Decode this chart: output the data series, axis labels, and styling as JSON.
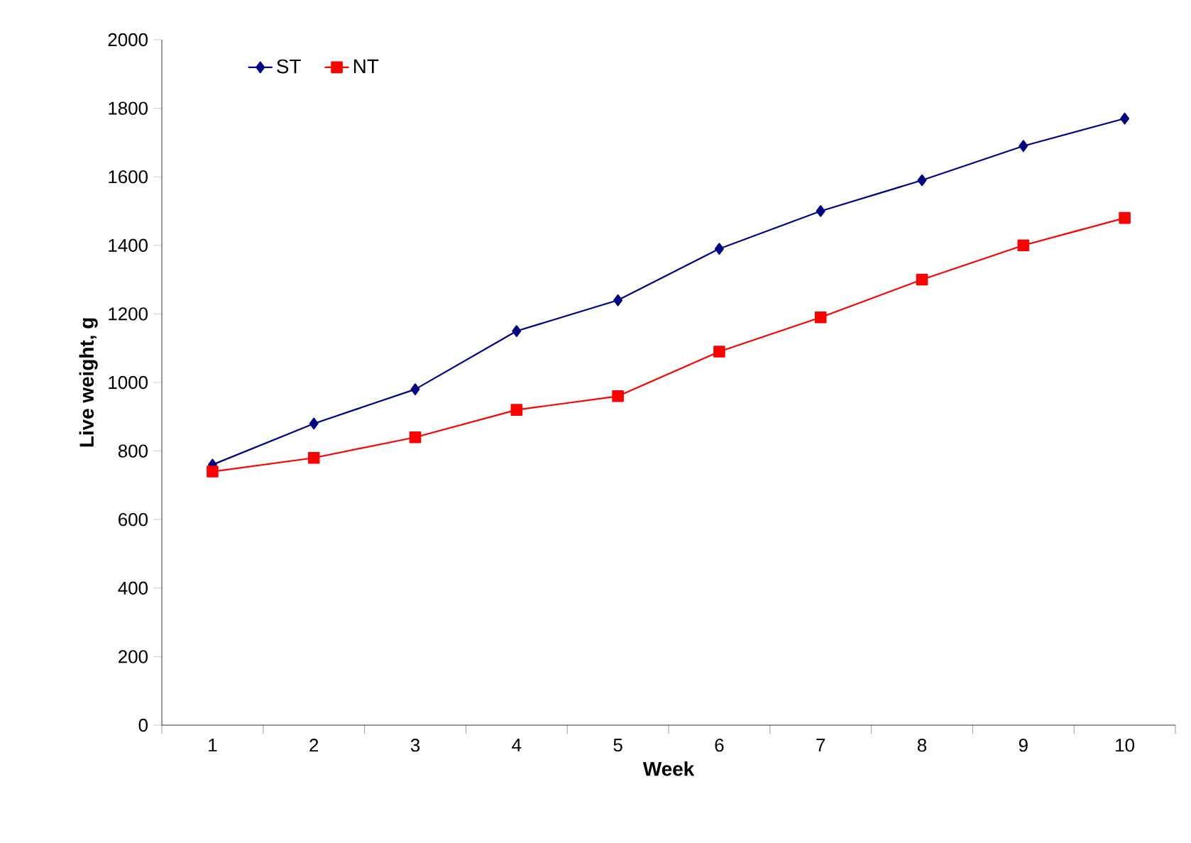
{
  "chart_data": {
    "type": "line",
    "xlabel": "Week",
    "ylabel": "Live weight, g",
    "categories": [
      "1",
      "2",
      "3",
      "4",
      "5",
      "6",
      "7",
      "8",
      "9",
      "10"
    ],
    "series": [
      {
        "name": "ST",
        "color": "#000080",
        "marker": "diamond",
        "values": [
          760,
          880,
          980,
          1150,
          1240,
          1390,
          1500,
          1590,
          1690,
          1770
        ]
      },
      {
        "name": "NT",
        "color": "#ff0000",
        "marker": "square",
        "values": [
          740,
          780,
          840,
          920,
          960,
          1090,
          1190,
          1300,
          1400,
          1480
        ]
      }
    ],
    "ylim": [
      0,
      2000
    ],
    "yticks": [
      0,
      200,
      400,
      600,
      800,
      1000,
      1200,
      1400,
      1600,
      1800,
      2000
    ],
    "legend": "top left",
    "grid": false
  }
}
